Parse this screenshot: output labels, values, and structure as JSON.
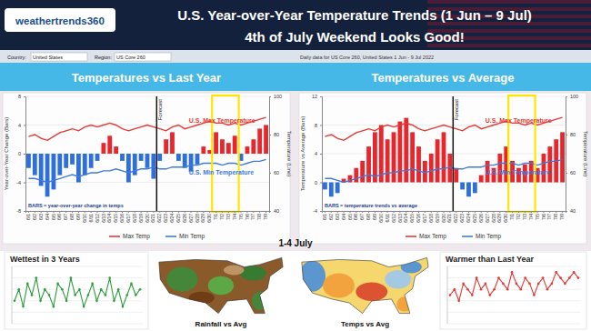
{
  "header": {
    "logo": "weathertrends360",
    "title": "U.S. Year-over-Year Temperature Trends (1 Jun – 9 Jul)",
    "subtitle": "4th of July Weekend Looks Good!",
    "controls": [
      "Country:",
      "United States",
      "Region:",
      "US Core 260"
    ],
    "info": "Daily data for US Core 260, United States 1 Jun - 9 Jul 2022"
  },
  "highlight_label": "1-4 July",
  "maps": [
    {
      "title": "Rainfall vs Avg"
    },
    {
      "title": "Temps vs Avg"
    }
  ],
  "chart_data": [
    {
      "type": "bar",
      "title": "Temperatures vs Last Year",
      "categories": [
        "6/1",
        "6/2",
        "6/3",
        "6/4",
        "6/5",
        "6/6",
        "6/7",
        "6/8",
        "6/9",
        "6/10",
        "6/11",
        "6/12",
        "6/13",
        "6/14",
        "6/15",
        "6/16",
        "6/17",
        "6/18",
        "6/19",
        "6/20",
        "6/21",
        "6/22",
        "6/23",
        "6/24",
        "6/25",
        "6/26",
        "6/27",
        "6/28",
        "6/29",
        "6/30",
        "7/1",
        "7/2",
        "7/3",
        "7/4",
        "7/5",
        "7/6",
        "7/7",
        "7/8",
        "7/9"
      ],
      "y_label": "Year-over-Year Change (Bars)",
      "y2_label": "Temperature (Line)",
      "ylim": [
        -8,
        8
      ],
      "yticks": [
        -8,
        -4,
        0,
        4,
        8
      ],
      "y2lim": [
        40,
        100
      ],
      "y2ticks": [
        40,
        60,
        80,
        100
      ],
      "grid": true,
      "legend": "bottom",
      "highlight": [
        "7/1",
        "7/4"
      ],
      "annotations": [
        {
          "x": "6/22",
          "text": "Forecast"
        }
      ],
      "note": "BARS = year-over-year change in temps",
      "series": [
        {
          "type": "bar",
          "values": [
            -2,
            -3,
            -4.5,
            -6,
            -5,
            -3,
            -2,
            -1.5,
            -4,
            -3,
            -2,
            -1,
            1.5,
            2.5,
            1,
            -1,
            -4,
            -3,
            -1,
            -2,
            -3.5,
            -1,
            2,
            3,
            -1,
            -2,
            -2.5,
            -1.5,
            1,
            0.5,
            3,
            2,
            1.5,
            2.5,
            -1,
            1,
            2,
            3.5,
            4
          ],
          "colors": [
            "#2f6fdb",
            "#2f6fdb",
            "#2f6fdb",
            "#2f6fdb",
            "#2f6fdb",
            "#2f6fdb",
            "#2f6fdb",
            "#2f6fdb",
            "#2f6fdb",
            "#2f6fdb",
            "#2f6fdb",
            "#2f6fdb",
            "#e8262b",
            "#e8262b",
            "#e8262b",
            "#2f6fdb",
            "#2f6fdb",
            "#2f6fdb",
            "#2f6fdb",
            "#2f6fdb",
            "#2f6fdb",
            "#2f6fdb",
            "#e8262b",
            "#e8262b",
            "#2f6fdb",
            "#2f6fdb",
            "#2f6fdb",
            "#2f6fdb",
            "#e8262b",
            "#e8262b",
            "#e8262b",
            "#e8262b",
            "#e8262b",
            "#e8262b",
            "#2f6fdb",
            "#e8262b",
            "#e8262b",
            "#e8262b",
            "#e8262b"
          ]
        },
        {
          "type": "line",
          "name": "Max Temp",
          "label": "U.S. Max Temperature",
          "color": "#e53935",
          "axis": "y2",
          "values": [
            79,
            80,
            78,
            77,
            79,
            81,
            82,
            83,
            82,
            84,
            85,
            84,
            85,
            86,
            85,
            83,
            82,
            83,
            84,
            85,
            84,
            83,
            82,
            84,
            85,
            83,
            84,
            85,
            86,
            87,
            86,
            86,
            85,
            86,
            85,
            86,
            87,
            88,
            89
          ]
        },
        {
          "type": "line",
          "name": "Min Temp",
          "label": "U.S. Min Temperature",
          "color": "#3f7bd9",
          "axis": "y2",
          "values": [
            57,
            57,
            56,
            55,
            56,
            57,
            58,
            59,
            58,
            59,
            60,
            60,
            61,
            61,
            62,
            61,
            60,
            61,
            62,
            62,
            63,
            62,
            62,
            63,
            63,
            63,
            64,
            64,
            65,
            65,
            65,
            64,
            65,
            65,
            64,
            65,
            66,
            66,
            67
          ]
        }
      ]
    },
    {
      "type": "bar",
      "title": "Temperatures vs Average",
      "categories": [
        "6/1",
        "6/2",
        "6/3",
        "6/4",
        "6/5",
        "6/6",
        "6/7",
        "6/8",
        "6/9",
        "6/10",
        "6/11",
        "6/12",
        "6/13",
        "6/14",
        "6/15",
        "6/16",
        "6/17",
        "6/18",
        "6/19",
        "6/20",
        "6/21",
        "6/22",
        "6/23",
        "6/24",
        "6/25",
        "6/26",
        "6/27",
        "6/28",
        "6/29",
        "6/30",
        "7/1",
        "7/2",
        "7/3",
        "7/4",
        "7/5",
        "7/6",
        "7/7",
        "7/8",
        "7/9"
      ],
      "y_label": "Temperature vs Average (Bars)",
      "y2_label": "Temperature (Line)",
      "ylim": [
        -4,
        12
      ],
      "yticks": [
        -4,
        0,
        4,
        8,
        12
      ],
      "y2lim": [
        40,
        100
      ],
      "y2ticks": [
        40,
        60,
        80,
        100
      ],
      "grid": true,
      "legend": "bottom",
      "highlight": [
        "7/1",
        "7/4"
      ],
      "annotations": [
        {
          "x": "6/22",
          "text": "Forecast"
        }
      ],
      "note": "BARS = temperature trends vs average",
      "series": [
        {
          "type": "bar",
          "values": [
            -1,
            -2,
            -1.5,
            0.5,
            1,
            2,
            3,
            5,
            7,
            8,
            6,
            7,
            8.5,
            9,
            7,
            5,
            3,
            4,
            6,
            7,
            4,
            2,
            -1,
            -2,
            -1.5,
            1,
            3,
            2,
            4,
            5,
            3,
            2,
            2.5,
            3,
            2,
            4,
            5,
            6,
            7
          ],
          "colors": [
            "#2f6fdb",
            "#2f6fdb",
            "#2f6fdb",
            "#e8262b",
            "#e8262b",
            "#e8262b",
            "#e8262b",
            "#e8262b",
            "#e8262b",
            "#e8262b",
            "#e8262b",
            "#e8262b",
            "#e8262b",
            "#e8262b",
            "#e8262b",
            "#e8262b",
            "#e8262b",
            "#e8262b",
            "#e8262b",
            "#e8262b",
            "#e8262b",
            "#e8262b",
            "#2f6fdb",
            "#2f6fdb",
            "#2f6fdb",
            "#e8262b",
            "#e8262b",
            "#e8262b",
            "#e8262b",
            "#e8262b",
            "#e8262b",
            "#e8262b",
            "#e8262b",
            "#e8262b",
            "#e8262b",
            "#e8262b",
            "#e8262b",
            "#e8262b",
            "#e8262b"
          ]
        },
        {
          "type": "line",
          "name": "Max Temp",
          "label": "U.S. Max Temperature",
          "color": "#e53935",
          "axis": "y2",
          "values": [
            79,
            80,
            78,
            77,
            79,
            81,
            82,
            83,
            82,
            84,
            85,
            84,
            85,
            86,
            85,
            83,
            82,
            83,
            84,
            85,
            84,
            83,
            82,
            84,
            85,
            83,
            84,
            85,
            86,
            87,
            86,
            86,
            85,
            86,
            85,
            86,
            87,
            88,
            89
          ]
        },
        {
          "type": "line",
          "name": "Min Temp",
          "label": "U.S. Min Temperature",
          "color": "#3f7bd9",
          "axis": "y2",
          "values": [
            57,
            57,
            56,
            55,
            56,
            57,
            58,
            59,
            58,
            59,
            60,
            60,
            61,
            61,
            62,
            61,
            60,
            61,
            62,
            62,
            63,
            62,
            62,
            63,
            63,
            63,
            64,
            64,
            65,
            65,
            65,
            64,
            65,
            65,
            64,
            65,
            66,
            66,
            67
          ]
        }
      ]
    },
    {
      "type": "line",
      "title": "Wettest in 3 Years",
      "ylim": [
        0,
        10
      ],
      "yticks": [
        0,
        2,
        4,
        6,
        8,
        10
      ],
      "grid": true,
      "tick_labels": false,
      "series": [
        {
          "color": "#2e9e3e",
          "marker": "circle",
          "values": [
            4,
            6,
            3,
            7,
            5,
            8,
            4,
            6,
            5,
            3,
            7,
            6,
            4,
            8,
            5,
            6,
            3,
            5,
            7,
            4,
            6,
            5,
            8,
            4,
            6,
            3,
            5,
            7,
            5,
            6
          ]
        }
      ]
    },
    {
      "type": "line",
      "title": "Warmer than Last Year",
      "ylim": [
        0,
        10
      ],
      "yticks": [
        0,
        2,
        4,
        6,
        8,
        10
      ],
      "grid": true,
      "tick_labels": false,
      "series": [
        {
          "color": "#e53935",
          "marker": "circle",
          "values": [
            5,
            6,
            4,
            7,
            6,
            5,
            8,
            6,
            7,
            5,
            6,
            8,
            7,
            6,
            9,
            7,
            6,
            8,
            7,
            5,
            7,
            8,
            6,
            7,
            9,
            8,
            7,
            8,
            9,
            8
          ]
        }
      ]
    }
  ]
}
